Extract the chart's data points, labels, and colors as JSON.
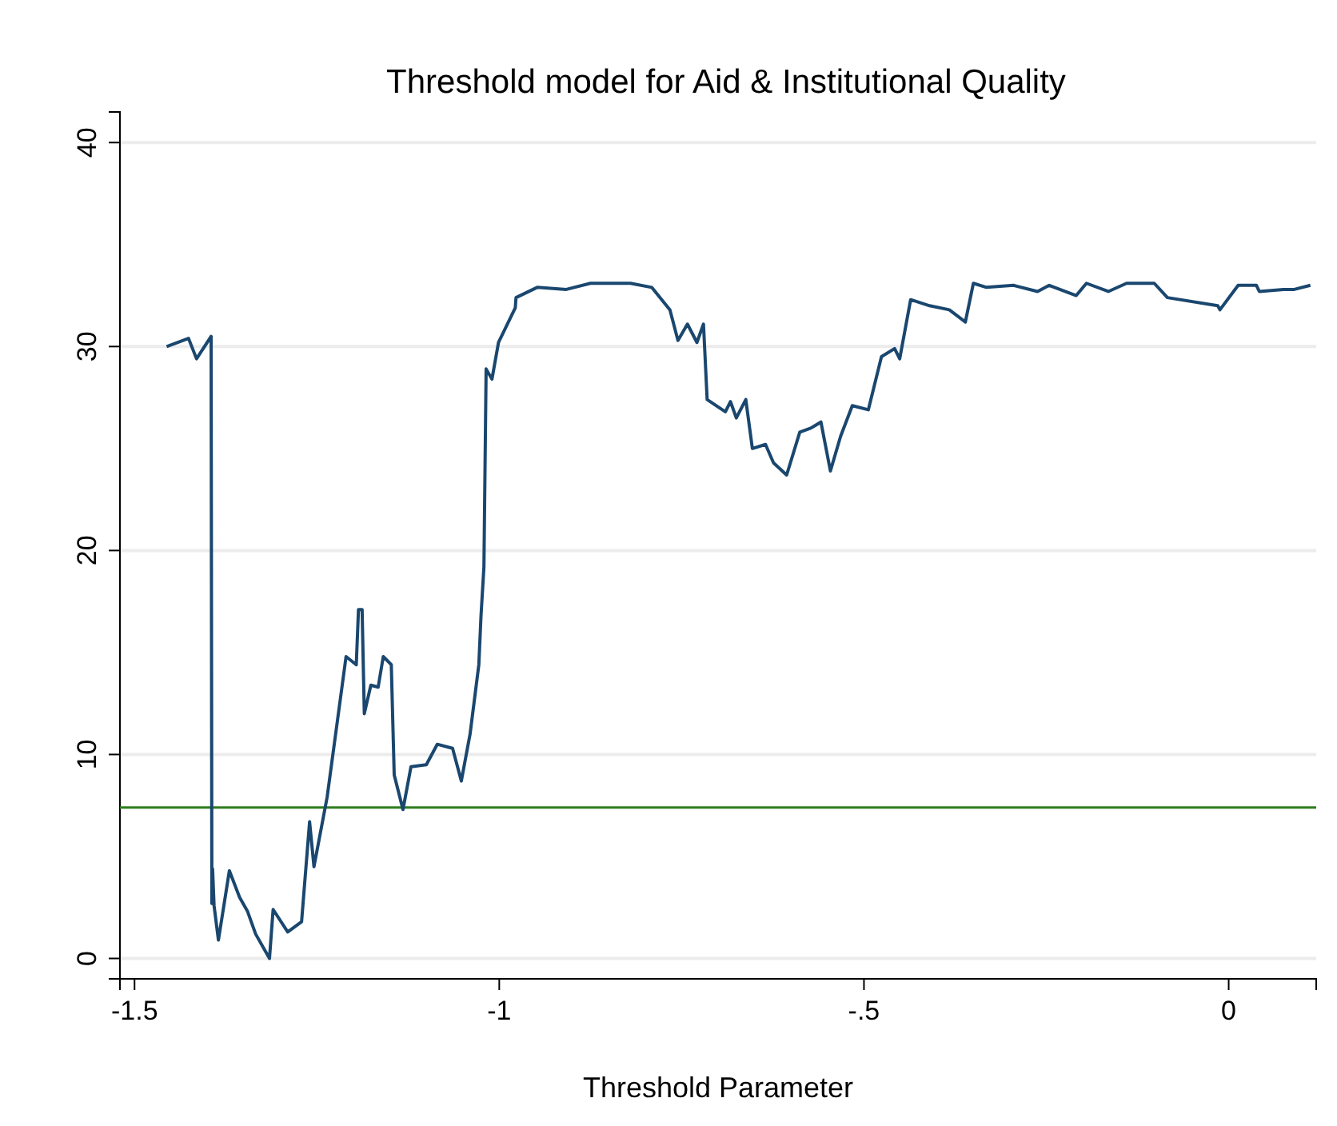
{
  "chart_data": {
    "type": "line",
    "title": "Threshold model for Aid & Institutional Quality",
    "xlabel": "Threshold Parameter",
    "xlim": [
      -1.52,
      0.12
    ],
    "xticks": [
      {
        "value": -1.5,
        "label": "-1.5"
      },
      {
        "value": -1,
        "label": "-1"
      },
      {
        "value": -0.5,
        "label": "-.5"
      },
      {
        "value": 0,
        "label": "0"
      }
    ],
    "ylim": [
      -1,
      41.5
    ],
    "yticks": [
      0,
      10,
      20,
      30,
      40
    ],
    "grid": "y",
    "ref_lines": [
      {
        "axis": "y",
        "value": 7.4,
        "color": "#2e7d1e"
      }
    ],
    "series": [
      {
        "color": "#1a476f",
        "x": [
          -1.456,
          -1.426,
          -1.415,
          -1.395,
          -1.394,
          -1.393,
          -1.391,
          -1.385,
          -1.37,
          -1.356,
          -1.345,
          -1.334,
          -1.315,
          -1.31,
          -1.29,
          -1.271,
          -1.26,
          -1.254,
          -1.236,
          -1.21,
          -1.196,
          -1.193,
          -1.188,
          -1.185,
          -1.176,
          -1.166,
          -1.159,
          -1.148,
          -1.144,
          -1.132,
          -1.121,
          -1.1,
          -1.085,
          -1.064,
          -1.052,
          -1.04,
          -1.028,
          -1.025,
          -1.021,
          -1.018,
          -1.01,
          -1.001,
          -0.978,
          -0.977,
          -0.948,
          -0.908,
          -0.875,
          -0.82,
          -0.791,
          -0.766,
          -0.755,
          -0.742,
          -0.729,
          -0.72,
          -0.715,
          -0.69,
          -0.683,
          -0.675,
          -0.662,
          -0.653,
          -0.635,
          -0.624,
          -0.606,
          -0.588,
          -0.573,
          -0.559,
          -0.546,
          -0.532,
          -0.516,
          -0.494,
          -0.476,
          -0.458,
          -0.451,
          -0.436,
          -0.41,
          -0.383,
          -0.361,
          -0.35,
          -0.332,
          -0.295,
          -0.262,
          -0.246,
          -0.209,
          -0.195,
          -0.165,
          -0.14,
          -0.102,
          -0.084,
          -0.015,
          -0.012,
          0.013,
          0.038,
          0.042,
          0.075,
          0.09,
          0.112
        ],
        "values": [
          30.0,
          30.4,
          29.4,
          30.5,
          2.7,
          4.4,
          2.6,
          0.9,
          4.3,
          3.0,
          2.3,
          1.2,
          0.0,
          2.4,
          1.3,
          1.8,
          6.7,
          4.5,
          7.9,
          14.8,
          14.4,
          17.1,
          17.1,
          12.0,
          13.4,
          13.3,
          14.8,
          14.4,
          9.0,
          7.3,
          9.4,
          9.5,
          10.5,
          10.3,
          8.7,
          11.0,
          14.4,
          16.8,
          19.2,
          28.9,
          28.4,
          30.2,
          31.9,
          32.4,
          32.9,
          32.8,
          33.1,
          33.1,
          32.9,
          31.8,
          30.3,
          31.1,
          30.2,
          31.1,
          27.4,
          26.8,
          27.3,
          26.5,
          27.4,
          25.0,
          25.2,
          24.3,
          23.7,
          25.8,
          26.0,
          26.3,
          23.9,
          25.6,
          27.1,
          26.9,
          29.5,
          29.9,
          29.4,
          32.3,
          32.0,
          31.8,
          31.2,
          33.1,
          32.9,
          33.0,
          32.7,
          33.0,
          32.5,
          33.1,
          32.7,
          33.1,
          33.1,
          32.4,
          32.0,
          31.8,
          33.0,
          33.0,
          32.7,
          32.8,
          32.8,
          33.0
        ]
      }
    ]
  }
}
